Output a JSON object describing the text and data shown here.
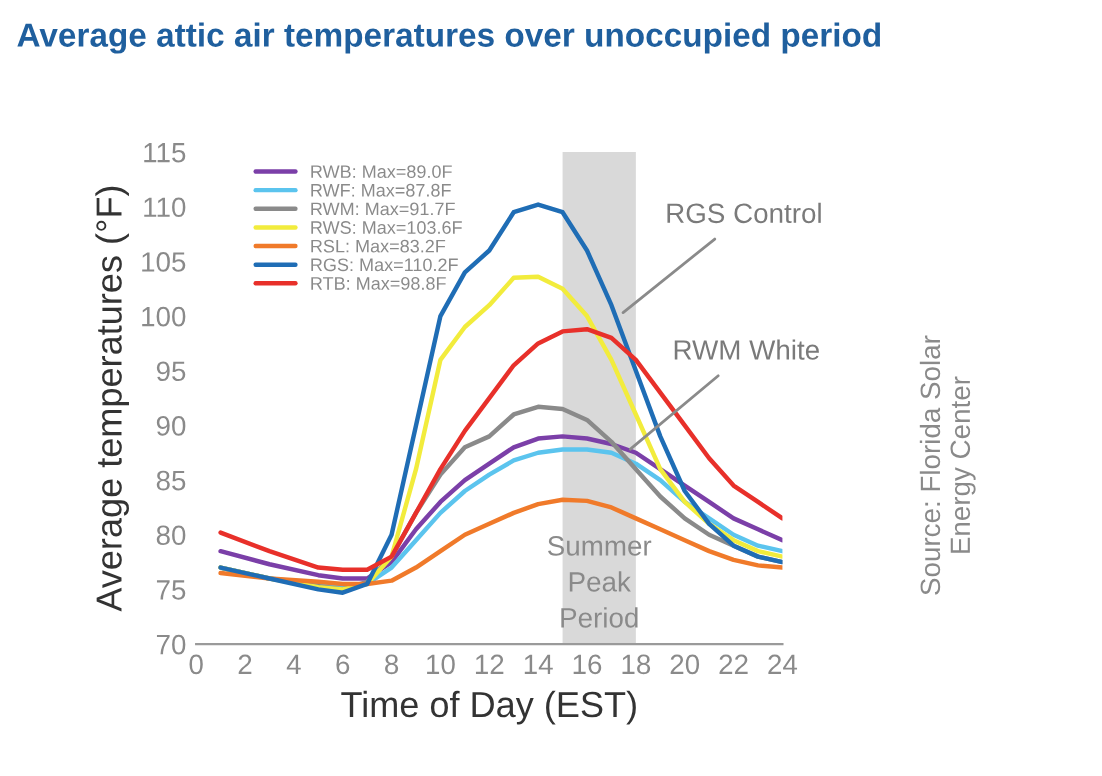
{
  "chart_data": {
    "type": "line",
    "title": "Average attic air temperatures over unoccupied period",
    "xlabel": "Time of Day (EST)",
    "ylabel": "Average temperatures (°F)",
    "x": [
      1,
      3,
      5,
      6,
      7,
      8,
      9,
      10,
      11,
      12,
      13,
      14,
      15,
      16,
      17,
      18,
      19,
      20,
      21,
      22,
      23,
      24
    ],
    "series": [
      {
        "name": "RWB: Max=89.0F",
        "color": "#7b3fa8",
        "values": [
          78.5,
          77.3,
          76.3,
          76,
          76,
          77.5,
          80.5,
          83,
          85,
          86.5,
          88,
          88.8,
          89,
          88.8,
          88.3,
          87.5,
          86,
          84.5,
          83,
          81.5,
          80.5,
          79.5
        ]
      },
      {
        "name": "RWF: Max=87.8F",
        "color": "#5bc4ee",
        "values": [
          77,
          76,
          75.5,
          75.3,
          75.5,
          77,
          79.5,
          82,
          84,
          85.5,
          86.8,
          87.5,
          87.8,
          87.8,
          87.5,
          86.5,
          85,
          83,
          81.5,
          80,
          79,
          78.5
        ]
      },
      {
        "name": "RWM: Max=91.7F",
        "color": "#8a8a8a",
        "values": [
          77,
          76,
          75.3,
          75,
          75.7,
          78,
          82,
          85.5,
          88,
          89,
          91,
          91.7,
          91.5,
          90.5,
          88.5,
          86,
          83.5,
          81.5,
          80,
          79,
          78,
          77.5
        ]
      },
      {
        "name": "RWS: Max=103.6F",
        "color": "#f2ec3c",
        "values": [
          77,
          76,
          75.2,
          75,
          75.5,
          78,
          86,
          96,
          99,
          101,
          103.5,
          103.6,
          102.5,
          100,
          96,
          91,
          86,
          83,
          81,
          79.5,
          78.5,
          78
        ]
      },
      {
        "name": "RSL: Max=83.2F",
        "color": "#f07a2a",
        "values": [
          76.5,
          76,
          75.7,
          75.5,
          75.5,
          75.8,
          77,
          78.5,
          80,
          81,
          82,
          82.8,
          83.2,
          83.1,
          82.5,
          81.5,
          80.5,
          79.5,
          78.5,
          77.7,
          77.2,
          77
        ]
      },
      {
        "name": "RGS: Max=110.2F",
        "color": "#1f6db5",
        "values": [
          77,
          76,
          75,
          74.7,
          75.5,
          80,
          90,
          100,
          104,
          106,
          109.5,
          110.2,
          109.5,
          106,
          101,
          95,
          89,
          84,
          81,
          79,
          78,
          77.5
        ]
      },
      {
        "name": "RTB: Max=98.8F",
        "color": "#e8302a",
        "values": [
          80.2,
          78.5,
          77,
          76.8,
          76.8,
          78,
          82,
          86,
          89.5,
          92.5,
          95.5,
          97.5,
          98.6,
          98.8,
          98,
          96,
          93,
          90,
          87,
          84.5,
          83,
          81.5
        ]
      }
    ],
    "xlim": [
      0,
      24
    ],
    "xticks": [
      0,
      2,
      4,
      6,
      8,
      10,
      12,
      14,
      16,
      18,
      20,
      22,
      24
    ],
    "ylim": [
      70,
      115
    ],
    "yticks": [
      70,
      75,
      80,
      85,
      90,
      95,
      100,
      105,
      110,
      115
    ],
    "bands": [
      {
        "axis": "x",
        "from": 15,
        "to": 18,
        "label": "Summer\nPeak\nPeriod",
        "color": "#d9d9d9"
      }
    ],
    "annotations": [
      {
        "text": "RGS Control",
        "x": 17.3,
        "y": 100
      },
      {
        "text": "RWM White",
        "x": 17.6,
        "y": 87.5
      },
      "Source: Florida Solar\nEnergy Center"
    ],
    "grid": false,
    "legend": "top left",
    "marker": "none",
    "line_style": "solid"
  }
}
